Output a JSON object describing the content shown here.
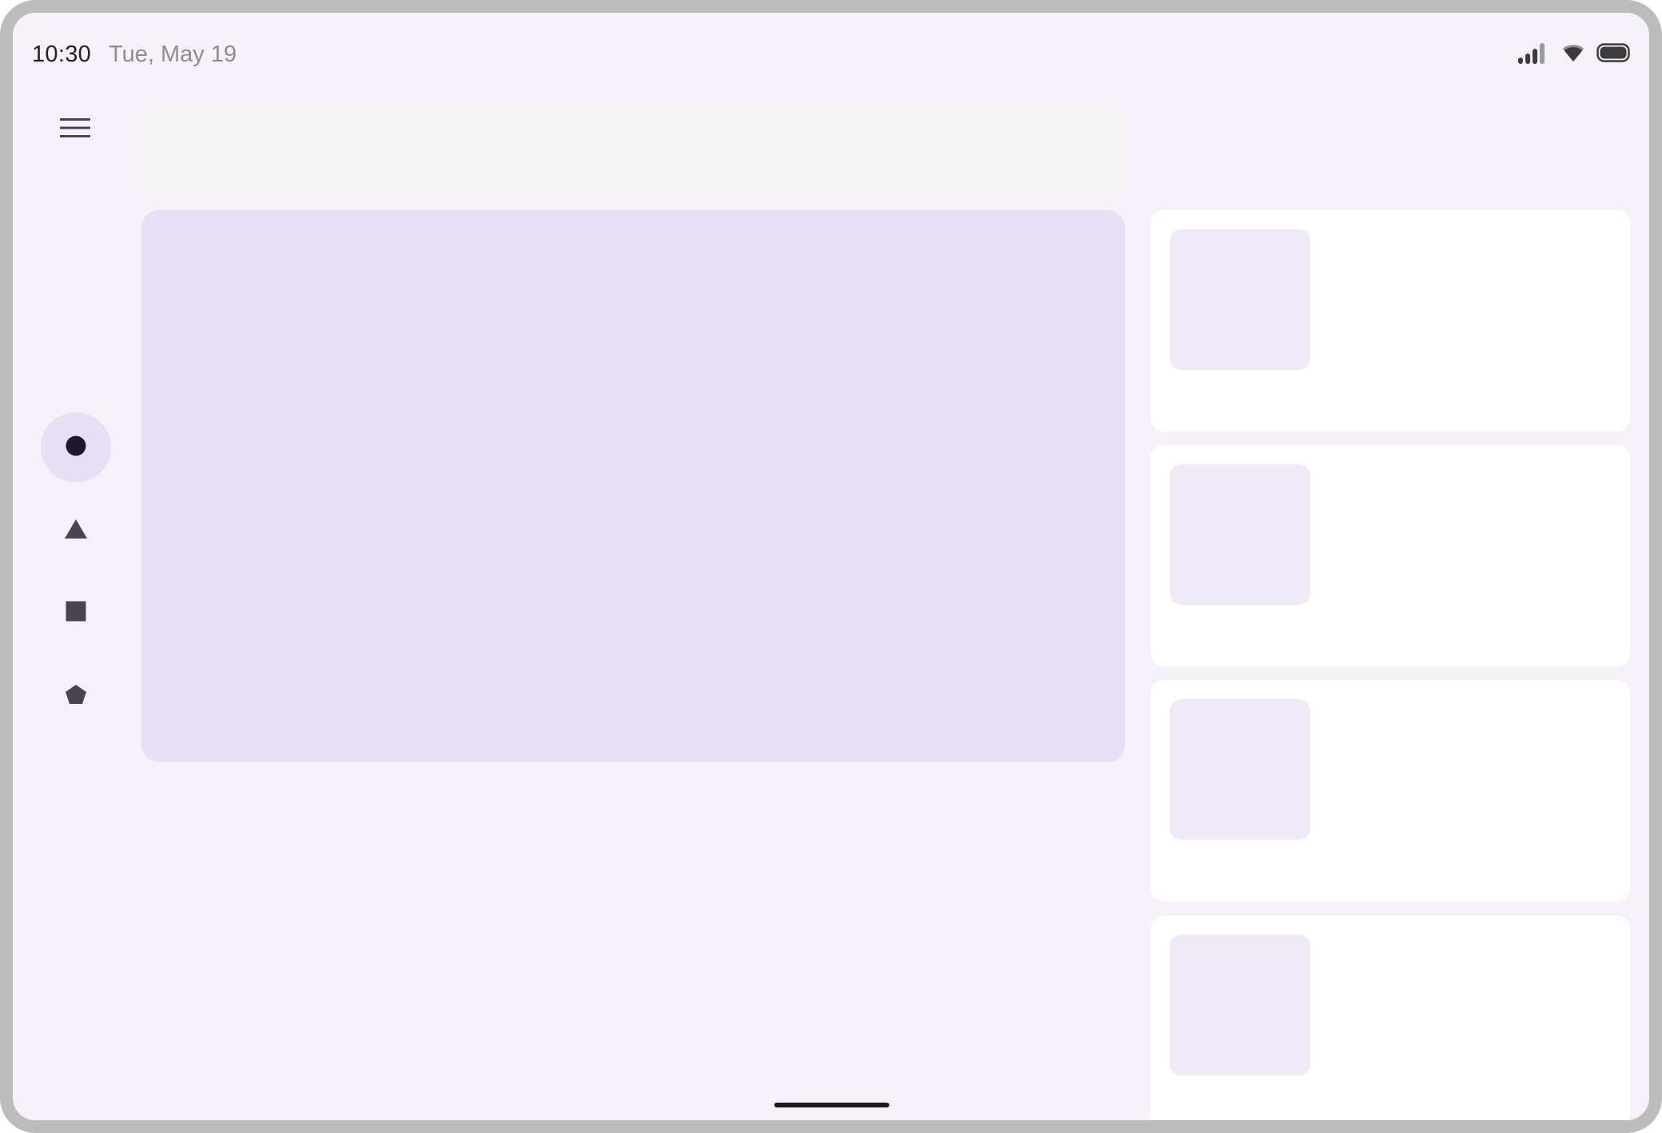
{
  "status_bar": {
    "time": "10:30",
    "date": "Tue, May 19",
    "icons": [
      "signal-icon",
      "wifi-icon",
      "battery-icon"
    ]
  },
  "nav_rail": {
    "menu_icon": "menu-icon",
    "items": [
      {
        "icon": "circle-icon",
        "selected": true
      },
      {
        "icon": "triangle-icon",
        "selected": false
      },
      {
        "icon": "square-icon",
        "selected": false
      },
      {
        "icon": "pentagon-icon",
        "selected": false
      }
    ]
  },
  "list": {
    "item_count": 4
  },
  "colors": {
    "background": "#f6f1f8",
    "hero_card": "#e7dff5",
    "thumb": "#f0e9f6",
    "active_indicator": "#e7dff4",
    "icon": "#49454f"
  }
}
